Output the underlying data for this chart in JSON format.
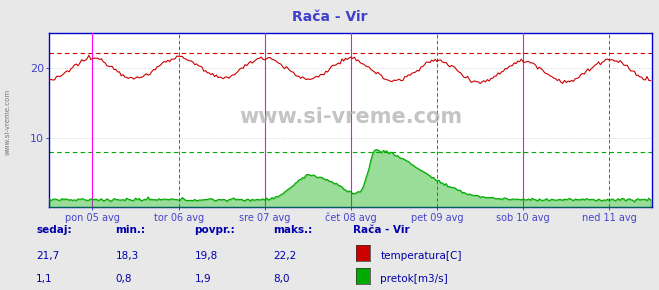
{
  "title": "Rača - Vir",
  "title_color": "#4040cc",
  "bg_color": "#e8e8e8",
  "plot_bg_color": "#ffffff",
  "grid_color": "#c8c8c8",
  "axis_color": "#4444cc",
  "text_color": "#0000aa",
  "ylim": [
    0,
    25
  ],
  "yticks": [
    10,
    20
  ],
  "xlim": [
    0,
    336
  ],
  "x_day_labels": [
    "pon 05 avg",
    "tor 06 avg",
    "sre 07 avg",
    "čet 08 avg",
    "pet 09 avg",
    "sob 10 avg",
    "ned 11 avg"
  ],
  "x_day_positions": [
    24,
    72,
    120,
    168,
    216,
    264,
    312
  ],
  "vertical_lines_magenta": [
    24,
    120,
    168,
    264
  ],
  "vertical_lines_dark_dashed": [
    72,
    216,
    312
  ],
  "hline_red_dashed_y": 22.2,
  "hline_green_dashed_y": 8.0,
  "temp_color": "#cc0000",
  "flow_color": "#00aa00",
  "temp_min": 18.3,
  "temp_max": 22.2,
  "temp_avg": 19.8,
  "flow_min": 0.8,
  "flow_max": 8.0,
  "flow_avg": 1.9,
  "temp_sedaj": "21,7",
  "flow_sedaj": "1,1",
  "temp_min_s": "18,3",
  "flow_min_s": "0,8",
  "temp_avg_s": "19,8",
  "flow_avg_s": "1,9",
  "temp_max_s": "22,2",
  "flow_max_s": "8,0",
  "watermark": "www.si-vreme.com",
  "left_label": "www.si-vreme.com",
  "station": "Rača - Vir",
  "temp_label": "temperatura[C]",
  "flow_label": "pretok[m3/s]",
  "npoints": 336
}
